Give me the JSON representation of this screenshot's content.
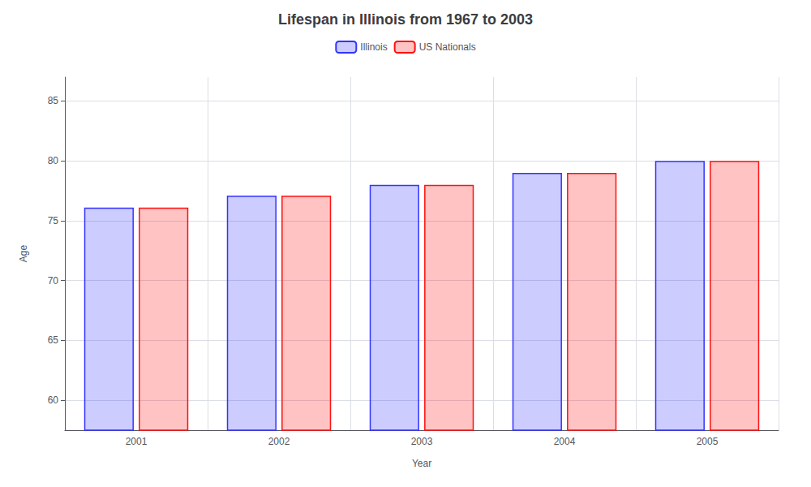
{
  "chart_data": {
    "type": "bar",
    "title": "Lifespan in Illinois from 1967 to 2003",
    "xlabel": "Year",
    "ylabel": "Age",
    "categories": [
      "2001",
      "2002",
      "2003",
      "2004",
      "2005"
    ],
    "series": [
      {
        "name": "Illinois",
        "color": "#3333ff",
        "values": [
          76.1,
          77.1,
          78.0,
          79.0,
          80.0
        ]
      },
      {
        "name": "US Nationals",
        "color": "#ff1111",
        "values": [
          76.1,
          77.1,
          78.0,
          79.0,
          80.0
        ]
      }
    ],
    "ylim": [
      57.5,
      87
    ],
    "yticks": [
      60,
      65,
      70,
      75,
      80,
      85
    ],
    "grid": true,
    "legend": "top"
  }
}
